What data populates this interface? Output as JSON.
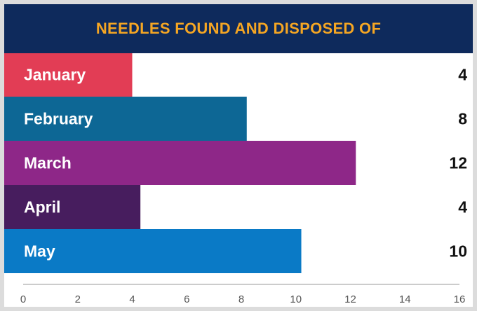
{
  "chart_data": {
    "type": "bar",
    "orientation": "horizontal",
    "title": "NEEDLES FOUND AND DISPOSED OF",
    "categories": [
      "January",
      "February",
      "March",
      "April",
      "May"
    ],
    "values": [
      4,
      8,
      12,
      4,
      10
    ],
    "bar_value_positions": [
      4.0,
      8.2,
      12.2,
      4.3,
      10.2
    ],
    "bar_colors": [
      "#e23d55",
      "#0d6795",
      "#8e2788",
      "#471d5e",
      "#0a7ac6"
    ],
    "xlim": [
      0,
      16
    ],
    "x_ticks": [
      "0",
      "2",
      "4",
      "6",
      "8",
      "10",
      "12",
      "14",
      "16"
    ],
    "xlabel": "",
    "ylabel": "",
    "grid": false,
    "legend": "none"
  },
  "colors": {
    "title_background": "#0e2a5c",
    "title_text": "#f5a623",
    "page_background": "#dcdcdc",
    "panel_background": "#ffffff"
  }
}
